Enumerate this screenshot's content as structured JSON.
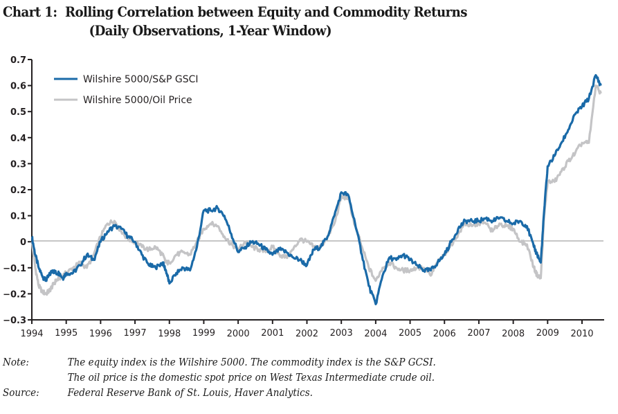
{
  "title": {
    "line1": "Chart 1:  Rolling Correlation between Equity and Commodity Returns",
    "line2": "(Daily Observations, 1-Year Window)"
  },
  "notes": {
    "note_label": "Note:",
    "note_line1": "The equity index is the Wilshire 5000. The commodity index is the S&P GCSI.",
    "note_line2": "The oil price is the domestic spot price on West Texas Intermediate crude oil.",
    "source_label": "Source:",
    "source_text": "Federal Reserve Bank of St. Louis, Haver Analytics."
  },
  "colors": {
    "gscI": "#1a6aa8",
    "oil": "#c4c4c6",
    "axis": "#231f20",
    "zero": "#8c8c8c"
  },
  "chart_data": {
    "type": "line",
    "title": "Chart 1: Rolling Correlation between Equity and Commodity Returns (Daily Observations, 1-Year Window)",
    "xlabel": "",
    "ylabel": "",
    "xlim": [
      1994,
      2010.6
    ],
    "ylim": [
      -0.3,
      0.7
    ],
    "x_ticks": [
      "1994",
      "1995",
      "1996",
      "1997",
      "1998",
      "1999",
      "2000",
      "2001",
      "2002",
      "2003",
      "2004",
      "2005",
      "2006",
      "2007",
      "2008",
      "2009",
      "2010"
    ],
    "y_ticks": [
      "0.7",
      "0.6",
      "0.5",
      "0.4",
      "0.3",
      "0.2",
      "0.1",
      "0",
      "−0.1",
      "−0.2",
      "−0.3"
    ],
    "zero_line": true,
    "grid": false,
    "legend_position": "top-left",
    "series": [
      {
        "name": "Wilshire 5000/S&P GSCI",
        "x": [
          1994.0,
          1994.1,
          1994.2,
          1994.3,
          1994.4,
          1994.5,
          1994.6,
          1994.7,
          1994.8,
          1994.9,
          1995.0,
          1995.2,
          1995.4,
          1995.6,
          1995.8,
          1996.0,
          1996.2,
          1996.4,
          1996.6,
          1996.8,
          1997.0,
          1997.2,
          1997.4,
          1997.6,
          1997.8,
          1997.9,
          1998.0,
          1998.2,
          1998.4,
          1998.6,
          1998.8,
          1999.0,
          1999.2,
          1999.4,
          1999.6,
          1999.8,
          2000.0,
          2000.2,
          2000.4,
          2000.6,
          2000.8,
          2001.0,
          2001.2,
          2001.4,
          2001.6,
          2001.8,
          2002.0,
          2002.2,
          2002.4,
          2002.6,
          2002.8,
          2003.0,
          2003.2,
          2003.4,
          2003.6,
          2003.8,
          2004.0,
          2004.2,
          2004.4,
          2004.6,
          2004.8,
          2005.0,
          2005.2,
          2005.4,
          2005.6,
          2005.8,
          2006.0,
          2006.2,
          2006.4,
          2006.6,
          2006.8,
          2007.0,
          2007.2,
          2007.4,
          2007.6,
          2007.8,
          2008.0,
          2008.2,
          2008.4,
          2008.6,
          2008.7,
          2008.8,
          2008.9,
          2009.0,
          2009.2,
          2009.4,
          2009.6,
          2009.8,
          2010.0,
          2010.2,
          2010.4,
          2010.55
        ],
        "values": [
          0.02,
          -0.05,
          -0.1,
          -0.13,
          -0.15,
          -0.13,
          -0.11,
          -0.12,
          -0.12,
          -0.14,
          -0.12,
          -0.12,
          -0.09,
          -0.05,
          -0.07,
          0.0,
          0.04,
          0.06,
          0.05,
          0.02,
          0.0,
          -0.05,
          -0.09,
          -0.1,
          -0.08,
          -0.11,
          -0.16,
          -0.12,
          -0.1,
          -0.11,
          -0.02,
          0.12,
          0.12,
          0.13,
          0.1,
          0.03,
          -0.04,
          -0.02,
          0.0,
          -0.01,
          -0.03,
          -0.05,
          -0.03,
          -0.04,
          -0.06,
          -0.07,
          -0.09,
          -0.03,
          -0.02,
          0.02,
          0.1,
          0.19,
          0.18,
          0.07,
          -0.05,
          -0.17,
          -0.24,
          -0.13,
          -0.06,
          -0.07,
          -0.05,
          -0.07,
          -0.09,
          -0.11,
          -0.11,
          -0.08,
          -0.05,
          0.0,
          0.05,
          0.08,
          0.08,
          0.08,
          0.09,
          0.08,
          0.09,
          0.08,
          0.07,
          0.08,
          0.06,
          -0.02,
          -0.05,
          -0.08,
          0.12,
          0.29,
          0.33,
          0.38,
          0.43,
          0.49,
          0.52,
          0.55,
          0.64,
          0.6
        ]
      },
      {
        "name": "Wilshire 5000/Oil Price",
        "x": [
          1994.0,
          1994.1,
          1994.2,
          1994.3,
          1994.4,
          1994.5,
          1994.6,
          1994.7,
          1994.8,
          1994.9,
          1995.0,
          1995.2,
          1995.4,
          1995.6,
          1995.8,
          1996.0,
          1996.2,
          1996.4,
          1996.6,
          1996.8,
          1997.0,
          1997.2,
          1997.4,
          1997.6,
          1997.8,
          1997.9,
          1998.0,
          1998.2,
          1998.4,
          1998.6,
          1998.8,
          1999.0,
          1999.2,
          1999.4,
          1999.6,
          1999.8,
          2000.0,
          2000.2,
          2000.4,
          2000.6,
          2000.8,
          2001.0,
          2001.2,
          2001.4,
          2001.6,
          2001.8,
          2002.0,
          2002.2,
          2002.4,
          2002.6,
          2002.8,
          2003.0,
          2003.2,
          2003.4,
          2003.6,
          2003.8,
          2004.0,
          2004.2,
          2004.4,
          2004.6,
          2004.8,
          2005.0,
          2005.2,
          2005.4,
          2005.6,
          2005.8,
          2006.0,
          2006.2,
          2006.4,
          2006.6,
          2006.8,
          2007.0,
          2007.2,
          2007.4,
          2007.6,
          2007.8,
          2008.0,
          2008.2,
          2008.4,
          2008.6,
          2008.7,
          2008.8,
          2008.9,
          2009.0,
          2009.2,
          2009.4,
          2009.6,
          2009.8,
          2010.0,
          2010.2,
          2010.4,
          2010.55
        ],
        "values": [
          0.0,
          -0.1,
          -0.17,
          -0.19,
          -0.2,
          -0.19,
          -0.17,
          -0.15,
          -0.14,
          -0.13,
          -0.12,
          -0.1,
          -0.08,
          -0.1,
          -0.05,
          0.02,
          0.07,
          0.08,
          0.04,
          0.01,
          0.0,
          -0.02,
          -0.03,
          -0.02,
          -0.05,
          -0.08,
          -0.08,
          -0.05,
          -0.04,
          -0.05,
          0.0,
          0.05,
          0.07,
          0.06,
          0.02,
          -0.01,
          -0.03,
          0.0,
          -0.02,
          -0.03,
          -0.04,
          -0.02,
          -0.05,
          -0.06,
          -0.03,
          0.01,
          0.0,
          -0.02,
          -0.02,
          0.02,
          0.07,
          0.17,
          0.17,
          0.06,
          -0.02,
          -0.1,
          -0.15,
          -0.1,
          -0.08,
          -0.1,
          -0.11,
          -0.11,
          -0.1,
          -0.1,
          -0.13,
          -0.08,
          -0.05,
          -0.01,
          0.03,
          0.07,
          0.06,
          0.07,
          0.07,
          0.04,
          0.07,
          0.06,
          0.05,
          0.0,
          -0.01,
          -0.1,
          -0.13,
          -0.14,
          0.1,
          0.23,
          0.23,
          0.27,
          0.31,
          0.34,
          0.38,
          0.38,
          0.6,
          0.57
        ]
      }
    ]
  }
}
